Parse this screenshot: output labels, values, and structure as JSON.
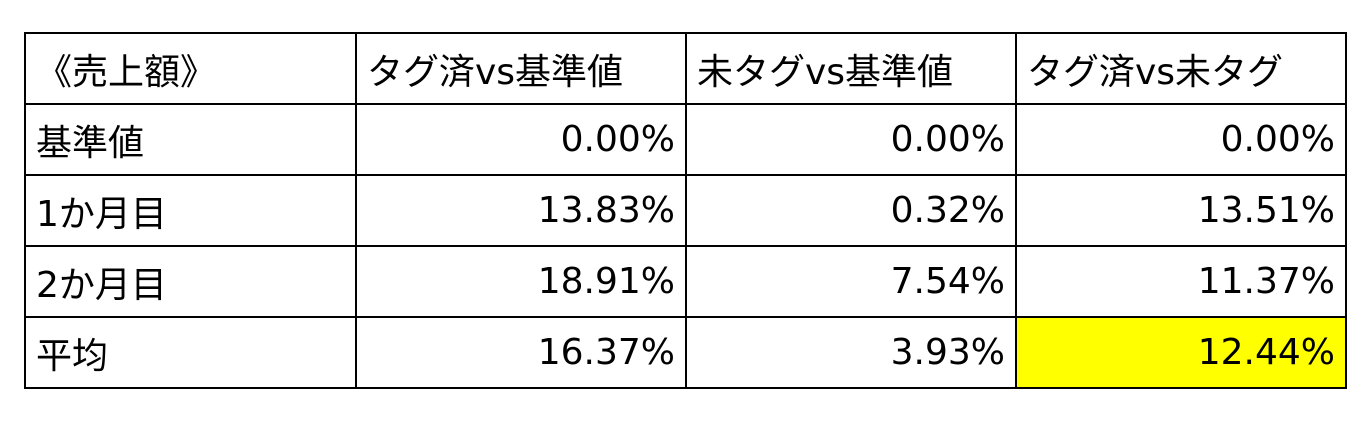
{
  "table": {
    "header": [
      "《売上額》",
      "タグ済vs基準値",
      "未タグvs基準値",
      "タグ済vs未タグ"
    ],
    "rows": [
      [
        "基準値",
        "0.00%",
        "0.00%",
        "0.00%"
      ],
      [
        "1か月目",
        "13.83%",
        "0.32%",
        "13.51%"
      ],
      [
        "2か月目",
        "18.91%",
        "7.54%",
        "11.37%"
      ],
      [
        "平均",
        "16.37%",
        "3.93%",
        "12.44%"
      ]
    ]
  }
}
